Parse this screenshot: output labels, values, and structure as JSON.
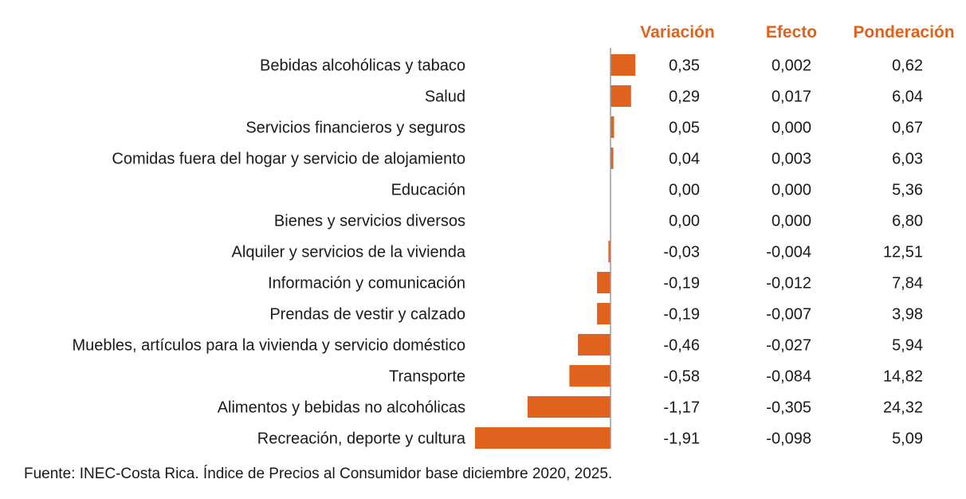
{
  "headers": {
    "variacion": "Variación",
    "efecto": "Efecto",
    "ponderacion": "Ponderación"
  },
  "source": "Fuente: INEC-Costa Rica. Índice de Precios al Consumidor base diciembre 2020, 2025.",
  "colors": {
    "bar": "#E0621C",
    "header": "#E0621C",
    "axis": "#9a9a9a"
  },
  "chart_data": {
    "type": "bar",
    "orientation": "horizontal",
    "categories": [
      "Bebidas alcohólicas y tabaco",
      "Salud",
      "Servicios financieros y seguros",
      "Comidas fuera del hogar y servicio de alojamiento",
      "Educación",
      "Bienes y servicios diversos",
      "Alquiler y servicios de la vivienda",
      "Información y comunicación",
      "Prendas de vestir y calzado",
      "Muebles, artículos para la vivienda y servicio doméstico",
      "Transporte",
      "Alimentos y bebidas no alcohólicas",
      "Recreación, deporte y cultura"
    ],
    "values": [
      0.35,
      0.29,
      0.05,
      0.04,
      0.0,
      0.0,
      -0.03,
      -0.19,
      -0.19,
      -0.46,
      -0.58,
      -1.17,
      -1.91
    ],
    "variacion_labels": [
      "0,35",
      "0,29",
      "0,05",
      "0,04",
      "0,00",
      "0,00",
      "-0,03",
      "-0,19",
      "-0,19",
      "-0,46",
      "-0,58",
      "-1,17",
      "-1,91"
    ],
    "efecto_labels": [
      "0,002",
      "0,017",
      "0,000",
      "0,003",
      "0,000",
      "0,000",
      "-0,004",
      "-0,012",
      "-0,007",
      "-0,027",
      "-0,084",
      "-0,305",
      "-0,098"
    ],
    "ponderacion_labels": [
      "0,62",
      "6,04",
      "0,67",
      "6,03",
      "5,36",
      "6,80",
      "12,51",
      "7,84",
      "3,98",
      "5,94",
      "14,82",
      "24,32",
      "5,09"
    ],
    "xlim": [
      -1.91,
      0.35
    ],
    "grid": false,
    "legend": "none"
  }
}
